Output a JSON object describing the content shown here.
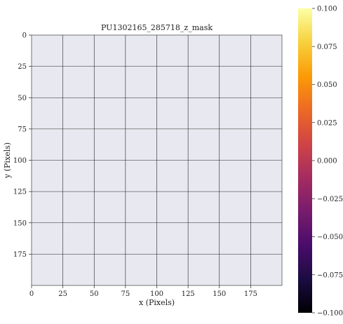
{
  "chart_data": {
    "type": "heatmap",
    "title": "PU1302165_285718_z_mask",
    "xlabel": "x (Pixels)",
    "ylabel": "y (Pixels)",
    "xlim": [
      0,
      200
    ],
    "ylim": [
      200,
      0
    ],
    "x_ticks": [
      0,
      25,
      50,
      75,
      100,
      125,
      150,
      175
    ],
    "x_tick_labels": [
      "0",
      "25",
      "50",
      "75",
      "100",
      "125",
      "150",
      "175"
    ],
    "y_ticks": [
      0,
      25,
      50,
      75,
      100,
      125,
      150,
      175
    ],
    "y_tick_labels": [
      "0",
      "25",
      "50",
      "75",
      "100",
      "125",
      "150",
      "175"
    ],
    "grid": true,
    "image_values": "empty (no data shown)",
    "colorbar": {
      "colormap": "inferno",
      "range": [
        -0.1,
        0.1
      ],
      "ticks": [
        0.1,
        0.075,
        0.05,
        0.025,
        0.0,
        -0.025,
        -0.05,
        -0.075,
        -0.1
      ],
      "tick_labels": [
        "0.100",
        "0.075",
        "0.050",
        "0.025",
        "0.000",
        "−0.025",
        "−0.050",
        "−0.075",
        "−0.100"
      ],
      "position": "right"
    },
    "colors": {
      "axes_background": "#e8e8f0",
      "grid": "#222222",
      "inferno_stops": [
        "#000004",
        "#1b0c41",
        "#4a0c6b",
        "#781c6d",
        "#a52c60",
        "#cf4446",
        "#ed6925",
        "#fb9b06",
        "#f7d13d",
        "#fcffa4"
      ]
    }
  }
}
